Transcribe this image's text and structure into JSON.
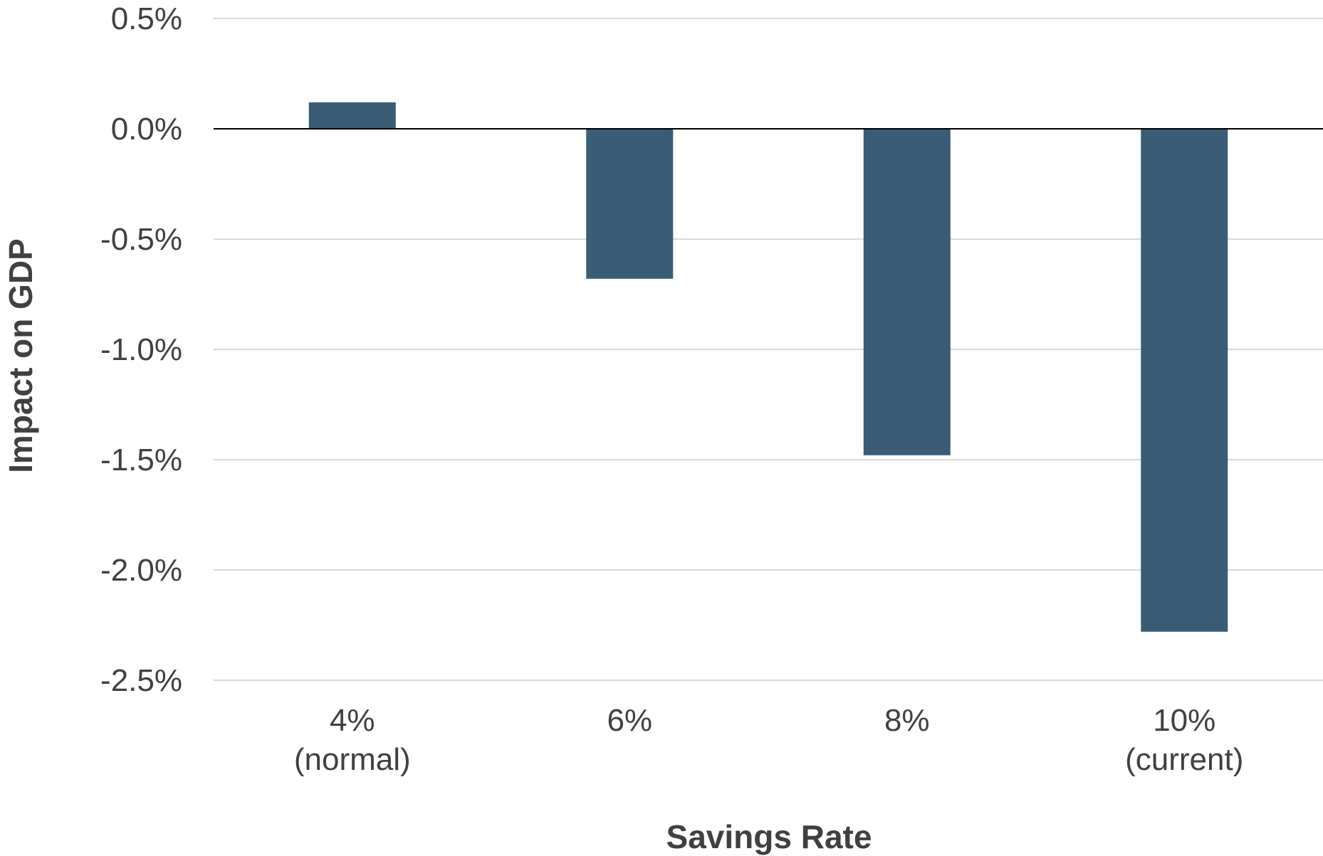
{
  "chart_data": {
    "type": "bar",
    "categories": [
      [
        "4%",
        "(normal)"
      ],
      [
        "6%"
      ],
      [
        "8%"
      ],
      [
        "10%",
        "(current)"
      ]
    ],
    "values": [
      0.12,
      -0.68,
      -1.48,
      -2.28
    ],
    "value_unit": "%",
    "title": "",
    "xlabel": "Savings Rate",
    "ylabel": "Impact on GDP",
    "ylim": [
      -2.5,
      0.5
    ],
    "yticks": [
      "0.5%",
      "0.0%",
      "-0.5%",
      "-1.0%",
      "-1.5%",
      "-2.0%",
      "-2.5%"
    ],
    "ytick_values": [
      0.5,
      0.0,
      -0.5,
      -1.0,
      -1.5,
      -2.0,
      -2.5
    ],
    "grid": true,
    "legend": "none",
    "colors": {
      "bar": "#3a5c74",
      "grid": "#d9d9d9",
      "zero_line": "#000000",
      "text": "#404040"
    }
  }
}
